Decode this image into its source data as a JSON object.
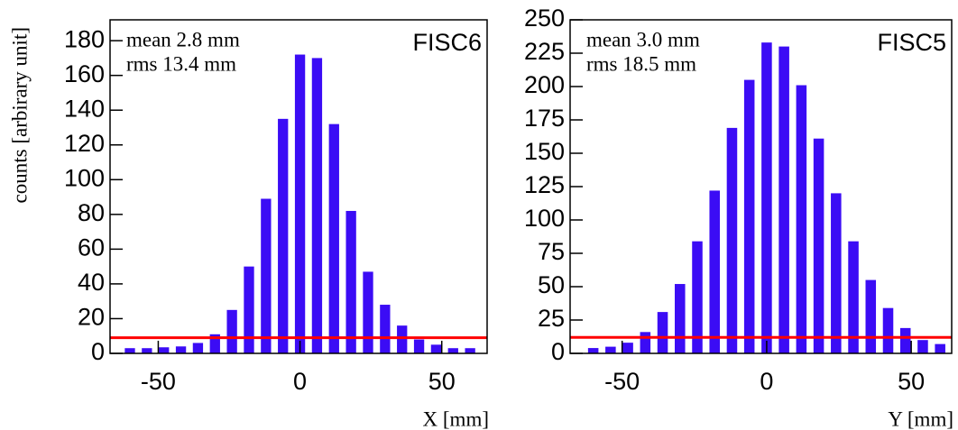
{
  "chart_data": [
    {
      "type": "histogram",
      "title": "FISC6",
      "annotations": [
        "mean 2.8 mm",
        "rms 13.4 mm"
      ],
      "y_label": "counts [arbirary unit]",
      "x_label": "X [mm]",
      "bins": [
        -63,
        -57,
        -51,
        -45,
        -39,
        -33,
        -27,
        -21,
        -15,
        -9,
        -3,
        3,
        9,
        15,
        21,
        27,
        33,
        39,
        45,
        51,
        57,
        63
      ],
      "values": [
        3,
        3,
        3.5,
        4,
        6,
        11,
        25,
        50,
        89,
        135,
        172,
        170,
        132,
        82,
        47,
        28,
        16,
        8,
        5,
        3,
        3
      ],
      "color": "#3b0cf5",
      "xlim": [
        -67,
        66
      ],
      "xticks": [
        -50,
        0,
        50
      ],
      "ylim": [
        0,
        192
      ],
      "yticks": [
        0,
        20,
        40,
        60,
        80,
        100,
        120,
        140,
        160,
        180
      ],
      "hline": {
        "value": 9,
        "color": "#ff0000"
      }
    },
    {
      "type": "histogram",
      "title": "FISC5",
      "annotations": [
        "mean 3.0 mm",
        "rms 18.5 mm"
      ],
      "x_label": "Y [mm]",
      "bins": [
        -63,
        -57,
        -51,
        -45,
        -39,
        -33,
        -27,
        -21,
        -15,
        -9,
        -3,
        3,
        9,
        15,
        21,
        27,
        33,
        39,
        45,
        51,
        57,
        63
      ],
      "values": [
        4,
        5,
        8,
        16,
        31,
        52,
        84,
        122,
        169,
        205,
        233,
        230,
        201,
        161,
        120,
        84,
        55,
        34,
        19,
        10,
        7
      ],
      "color": "#3b0cf5",
      "xlim": [
        -68,
        64
      ],
      "xticks": [
        -50,
        0,
        50
      ],
      "ylim": [
        0,
        250
      ],
      "yticks": [
        0,
        25,
        50,
        75,
        100,
        125,
        150,
        175,
        200,
        225,
        250
      ],
      "hline": {
        "value": 12,
        "color": "#ff0000"
      }
    }
  ]
}
